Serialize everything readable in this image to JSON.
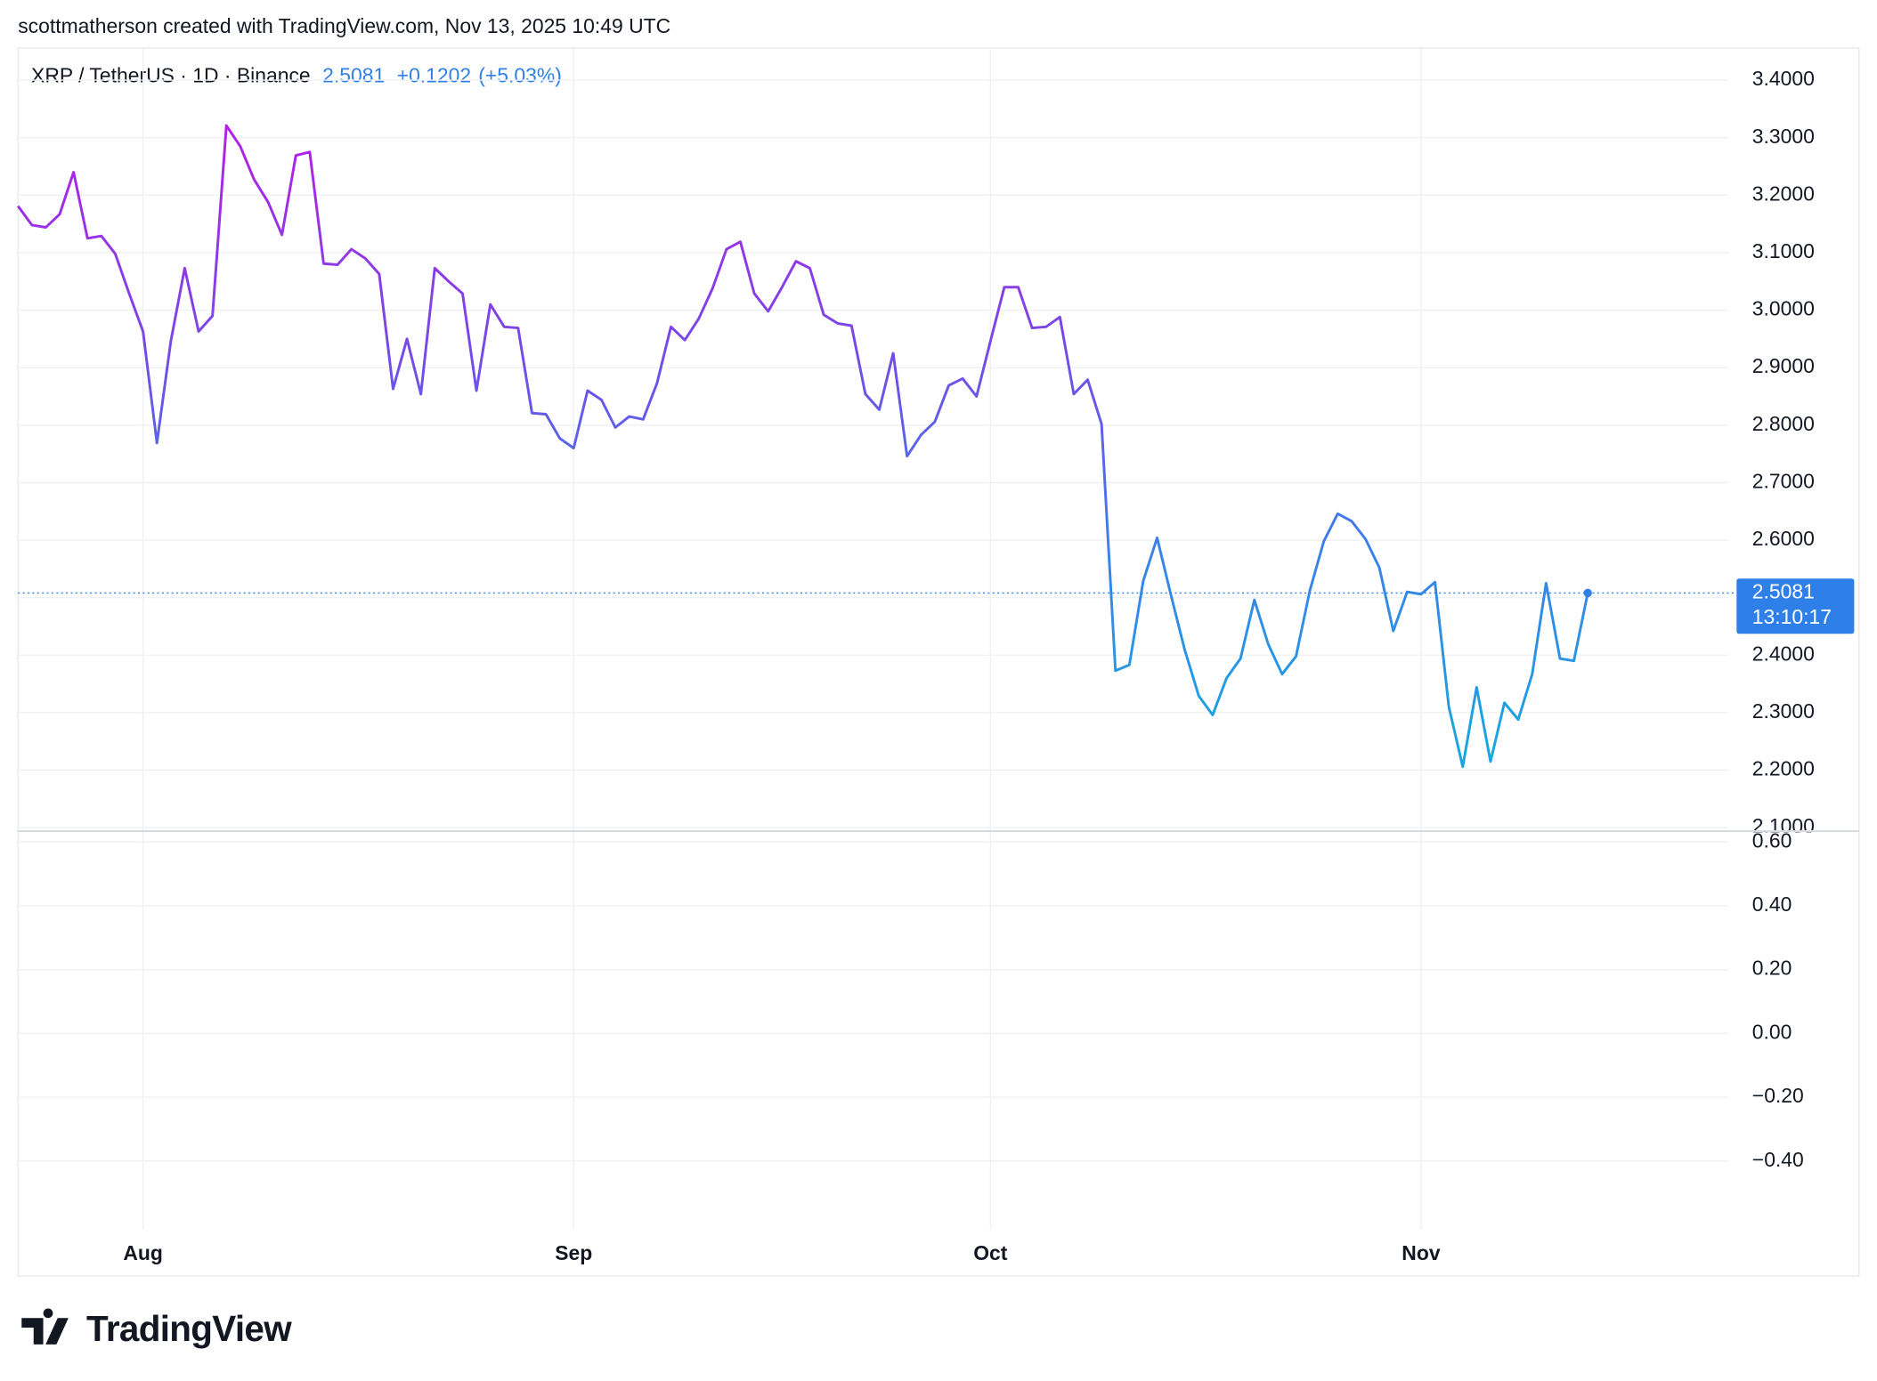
{
  "header": "scottmatherson created with TradingView.com, Nov 13, 2025 10:49 UTC",
  "logo": "TradingView",
  "chart_data": [
    {
      "type": "line",
      "title": "XRP / TetherUS · 1D · Binance",
      "change": "+0.1202",
      "change_percent": "(+5.03%)",
      "countdown": "13:10:17",
      "categories": [
        null,
        null,
        null,
        null,
        null,
        null,
        null,
        null,
        null,
        "Aug",
        null,
        null,
        null,
        null,
        null,
        null,
        null,
        null,
        null,
        null,
        null,
        null,
        null,
        null,
        null,
        null,
        null,
        null,
        null,
        null,
        null,
        null,
        null,
        null,
        null,
        null,
        null,
        null,
        null,
        null,
        "Sep",
        null,
        null,
        null,
        null,
        null,
        null,
        null,
        null,
        null,
        null,
        null,
        null,
        null,
        null,
        null,
        null,
        null,
        null,
        null,
        null,
        null,
        null,
        null,
        null,
        null,
        null,
        null,
        null,
        null,
        "Oct",
        null,
        null,
        null,
        null,
        null,
        null,
        null,
        null,
        null,
        null,
        null,
        null,
        null,
        null,
        null,
        null,
        null,
        null,
        null,
        null,
        null,
        null,
        null,
        null,
        null,
        null,
        null,
        null,
        null,
        null,
        "Nov",
        null,
        null,
        null,
        null,
        null,
        null,
        null,
        null,
        null,
        null,
        null,
        null
      ],
      "values": [
        3.181,
        3.148,
        3.144,
        3.167,
        3.24,
        3.125,
        3.129,
        3.098,
        3.029,
        2.963,
        2.769,
        2.946,
        3.073,
        2.963,
        2.99,
        3.321,
        3.285,
        3.227,
        3.188,
        3.131,
        3.269,
        3.275,
        3.081,
        3.079,
        3.106,
        3.09,
        3.063,
        2.863,
        2.95,
        2.854,
        3.073,
        3.05,
        3.029,
        2.86,
        3.01,
        2.971,
        2.969,
        2.821,
        2.819,
        2.777,
        2.76,
        2.86,
        2.844,
        2.796,
        2.815,
        2.81,
        2.873,
        2.971,
        2.948,
        2.985,
        3.038,
        3.106,
        3.119,
        3.029,
        2.998,
        3.04,
        3.085,
        3.073,
        2.992,
        2.977,
        2.973,
        2.854,
        2.827,
        2.925,
        2.746,
        2.783,
        2.806,
        2.869,
        2.881,
        2.85,
        2.946,
        3.04,
        3.04,
        2.969,
        2.971,
        2.988,
        2.854,
        2.879,
        2.802,
        2.373,
        2.383,
        2.529,
        2.604,
        2.504,
        2.408,
        2.329,
        2.296,
        2.36,
        2.394,
        2.496,
        2.419,
        2.367,
        2.398,
        2.513,
        2.598,
        2.646,
        2.633,
        2.602,
        2.552,
        2.442,
        2.51,
        2.506,
        2.527,
        2.31,
        2.206,
        2.344,
        2.215,
        2.317,
        2.288,
        2.367,
        2.525,
        2.394,
        2.39,
        2.5081
      ],
      "colors": [
        "#b41fe7",
        "#7a47e6",
        "#3a82e8",
        "#17a9df"
      ],
      "price_color": "#2f7fe9",
      "ylim": [
        2.096,
        3.456
      ],
      "yticks": [
        {
          "value": 2.1,
          "label": "2.1000"
        },
        {
          "value": 2.2,
          "label": "2.2000"
        },
        {
          "value": 2.3,
          "label": "2.3000"
        },
        {
          "value": 2.4,
          "label": "2.4000"
        },
        {
          "value": 2.5,
          "label": "2.5000"
        },
        {
          "value": 2.6,
          "label": "2.6000"
        },
        {
          "value": 2.7,
          "label": "2.7000"
        },
        {
          "value": 2.8,
          "label": "2.8000"
        },
        {
          "value": 2.9,
          "label": "2.9000"
        },
        {
          "value": 3.0,
          "label": "3.0000"
        },
        {
          "value": 3.1,
          "label": "3.1000"
        },
        {
          "value": 3.2,
          "label": "3.2000"
        },
        {
          "value": 3.3,
          "label": "3.3000"
        },
        {
          "value": 3.4,
          "label": "3.4000"
        }
      ],
      "grid": true
    },
    {
      "type": "pane",
      "ylim": [
        -0.614,
        0.619
      ],
      "yticks": [
        {
          "value": 0.6,
          "label": "0.60"
        },
        {
          "value": 0.4,
          "label": "0.40"
        },
        {
          "value": 0.2,
          "label": "0.20"
        },
        {
          "value": 0,
          "label": "0.00"
        },
        {
          "value": -0.2,
          "label": "−0.20"
        },
        {
          "value": -0.4,
          "label": "−0.40"
        }
      ],
      "grid": true
    }
  ]
}
